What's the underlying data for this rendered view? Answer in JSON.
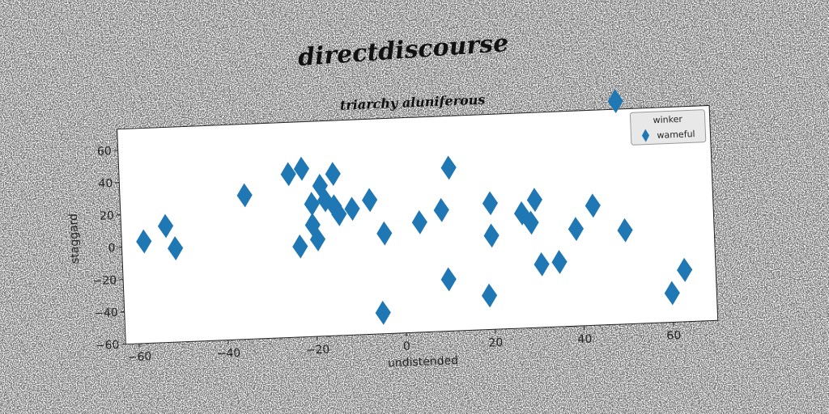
{
  "figure": {
    "title": "directdiscourse",
    "axes_title": "triarchy aluniferous"
  },
  "chart_data": {
    "type": "scatter",
    "xlabel": "undistended",
    "ylabel": "staggard",
    "xlim": [
      -63,
      70
    ],
    "ylim": [
      -60,
      73
    ],
    "xticks": [
      -60,
      -40,
      -20,
      0,
      20,
      40,
      60
    ],
    "yticks": [
      -60,
      -40,
      -20,
      0,
      20,
      40,
      60
    ],
    "grid": false,
    "legend": {
      "title": "winker",
      "placement": "upper right",
      "entries": [
        "wameful"
      ]
    },
    "series": [
      {
        "name": "wameful",
        "marker": "diamond",
        "color": "#1f77b4",
        "points": [
          [
            -58,
            3
          ],
          [
            -53,
            12
          ],
          [
            -51,
            -2
          ],
          [
            -35,
            29
          ],
          [
            -25,
            41
          ],
          [
            -22,
            44
          ],
          [
            -23,
            -4
          ],
          [
            -18,
            33
          ],
          [
            -20,
            22
          ],
          [
            -20,
            9
          ],
          [
            -17,
            24
          ],
          [
            -15,
            20
          ],
          [
            -19,
            0
          ],
          [
            -14,
            15
          ],
          [
            -15,
            40
          ],
          [
            -11,
            18
          ],
          [
            -7,
            23
          ],
          [
            -4,
            2
          ],
          [
            -5,
            -47
          ],
          [
            4,
            8
          ],
          [
            9,
            15
          ],
          [
            11,
            41
          ],
          [
            10,
            -28
          ],
          [
            20,
            18
          ],
          [
            20,
            -2
          ],
          [
            19,
            -39
          ],
          [
            27,
            11
          ],
          [
            29,
            5
          ],
          [
            30,
            19
          ],
          [
            31,
            -21
          ],
          [
            35,
            -20
          ],
          [
            39,
            0
          ],
          [
            43,
            14
          ],
          [
            49,
            78
          ],
          [
            50,
            -2
          ],
          [
            60,
            -42
          ],
          [
            63,
            -28
          ]
        ]
      }
    ]
  }
}
